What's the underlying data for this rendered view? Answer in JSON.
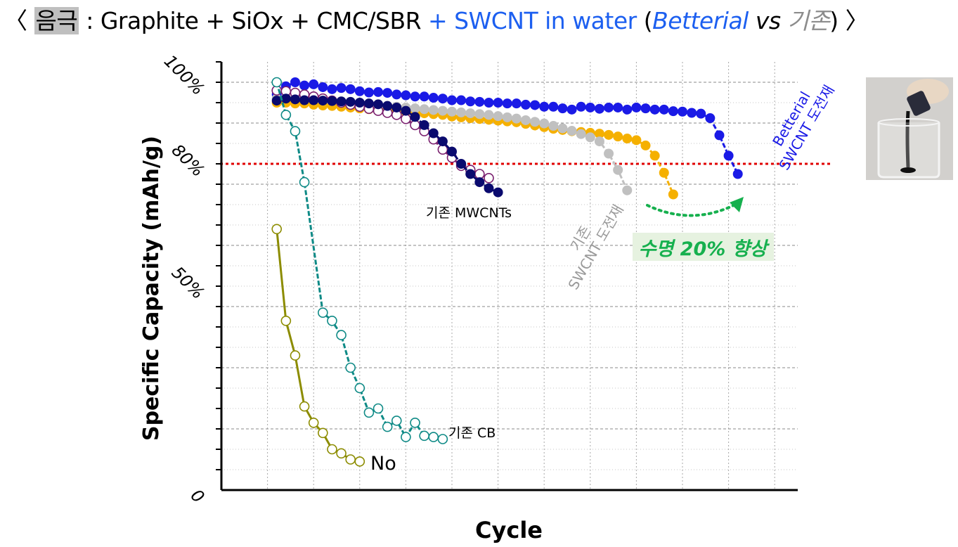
{
  "title": {
    "open": "〈 ",
    "highlight": "음극",
    "text1": " : Graphite + SiOx + CMC/SBR ",
    "blue_text": "+ SWCNT in water",
    "paren_open": " (",
    "brand": "Betterial",
    "vs": " vs ",
    "existing": "기존",
    "close": ") 〉"
  },
  "colors": {
    "betterial": "#1a1ae6",
    "existing_swcnt_gray": "#c0c0c0",
    "existing_swcnt_orange": "#f5b000",
    "mwcnt_navy": "#0a0a6e",
    "mwcnt_open": "#7a1f6e",
    "cb": "#0e8a86",
    "no": "#8c8c00",
    "threshold": "#e00000",
    "arrow": "#16b04e"
  },
  "photo": {
    "name": "SWCNT dispersion photo"
  },
  "chart_data": {
    "type": "line",
    "xlabel": "Cycle",
    "ylabel": "Specific Capacity (mAh/g)",
    "xlim": [
      0,
      12.5
    ],
    "ylim": [
      0,
      105
    ],
    "grid": true,
    "ytick_labels": [
      {
        "value": 100,
        "label": "100%"
      },
      {
        "value": 80,
        "label": "80%"
      },
      {
        "value": 50,
        "label": "50%"
      },
      {
        "value": 0,
        "label": "0"
      }
    ],
    "threshold": {
      "value": 80
    },
    "series": [
      {
        "key": "betterial",
        "style": "filled",
        "x": [
          1.2,
          1.4,
          1.6,
          1.8,
          2.0,
          2.2,
          2.4,
          2.6,
          2.8,
          3.0,
          3.2,
          3.4,
          3.6,
          3.8,
          4.0,
          4.2,
          4.4,
          4.6,
          4.8,
          5.0,
          5.2,
          5.4,
          5.6,
          5.8,
          6.0,
          6.2,
          6.4,
          6.6,
          6.8,
          7.0,
          7.2,
          7.4,
          7.6,
          7.8,
          8.0,
          8.2,
          8.4,
          8.6,
          8.8,
          9.0,
          9.2,
          9.4,
          9.6,
          9.8,
          10.0,
          10.2,
          10.4,
          10.6,
          10.8,
          11.0,
          11.2
        ],
        "y": [
          97,
          99,
          100,
          99.2,
          99.5,
          98.8,
          98.3,
          98.6,
          98.3,
          97.8,
          97.5,
          97.6,
          97.4,
          97.0,
          96.8,
          96.5,
          96.5,
          96.2,
          96.0,
          95.6,
          95.6,
          95.3,
          95.2,
          95.0,
          95.0,
          94.8,
          94.8,
          94.5,
          94.4,
          94.0,
          94.0,
          93.6,
          93.3,
          94.0,
          93.8,
          93.5,
          93.8,
          93.8,
          93.3,
          93.8,
          93.6,
          93.3,
          93.3,
          92.9,
          92.8,
          92.5,
          92.3,
          91.2,
          87.0,
          82.0,
          77.5
        ]
      },
      {
        "key": "existing_swcnt_orange",
        "style": "filled",
        "x": [
          1.2,
          1.4,
          1.6,
          1.8,
          2.0,
          2.2,
          2.4,
          2.6,
          2.8,
          3.0,
          3.2,
          3.4,
          3.6,
          3.8,
          4.0,
          4.2,
          4.4,
          4.6,
          4.8,
          5.0,
          5.2,
          5.4,
          5.6,
          5.8,
          6.0,
          6.2,
          6.4,
          6.6,
          6.8,
          7.0,
          7.2,
          7.4,
          7.6,
          7.8,
          8.0,
          8.2,
          8.4,
          8.6,
          8.8,
          9.0,
          9.2,
          9.4,
          9.6,
          9.8
        ],
        "y": [
          95,
          95,
          94.8,
          94.8,
          94.5,
          94.3,
          94.2,
          94,
          93.8,
          93.6,
          93.4,
          93.2,
          93.1,
          93,
          92.8,
          92.6,
          92.4,
          92.2,
          92,
          91.6,
          91.4,
          91.2,
          91,
          90.8,
          90.6,
          90.4,
          90.2,
          89.8,
          89.4,
          89,
          88.6,
          88.3,
          88,
          87.8,
          87.6,
          87.4,
          87.1,
          86.7,
          86.2,
          85.8,
          84.5,
          82.0,
          77.8,
          72.5
        ]
      },
      {
        "key": "existing_swcnt_gray",
        "style": "filled",
        "x": [
          1.2,
          1.4,
          1.6,
          1.8,
          2.0,
          2.2,
          2.4,
          2.6,
          2.8,
          3.0,
          3.2,
          3.4,
          3.6,
          3.8,
          4.0,
          4.2,
          4.4,
          4.6,
          4.8,
          5.0,
          5.2,
          5.4,
          5.6,
          5.8,
          6.0,
          6.2,
          6.4,
          6.6,
          6.8,
          7.0,
          7.2,
          7.4,
          7.6,
          7.8,
          8.0,
          8.2,
          8.4,
          8.6,
          8.8
        ],
        "y": [
          96,
          96.2,
          96.1,
          96,
          95.8,
          95.6,
          95.4,
          95.2,
          95,
          94.8,
          94.6,
          94.4,
          94.2,
          94,
          93.8,
          93.6,
          93.4,
          93.2,
          93,
          92.8,
          92.6,
          92.4,
          92.2,
          92,
          91.7,
          91.4,
          91.1,
          90.7,
          90.3,
          89.9,
          89.3,
          88.7,
          88.1,
          87.3,
          86.5,
          85.5,
          82.5,
          78.5,
          73.5
        ]
      },
      {
        "key": "mwcnt_open",
        "style": "open",
        "x": [
          1.2,
          1.4,
          1.6,
          1.8,
          2.0,
          2.2,
          2.4,
          2.6,
          2.8,
          3.0,
          3.2,
          3.4,
          3.6,
          3.8,
          4.0,
          4.2,
          4.4,
          4.6,
          4.8,
          5.0,
          5.2,
          5.4,
          5.6,
          5.8
        ],
        "y": [
          98,
          97.8,
          97.4,
          97,
          96.5,
          96,
          95.5,
          95,
          94.5,
          94,
          93.5,
          93,
          92.5,
          92,
          91,
          89.5,
          88,
          86,
          83.5,
          81.5,
          79.5,
          78.5,
          77.5,
          76.5
        ]
      },
      {
        "key": "mwcnt_navy",
        "style": "filled",
        "x": [
          1.2,
          1.4,
          1.6,
          1.8,
          2.0,
          2.2,
          2.4,
          2.6,
          2.8,
          3.0,
          3.2,
          3.4,
          3.6,
          3.8,
          4.0,
          4.2,
          4.4,
          4.6,
          4.8,
          5.0,
          5.2,
          5.4,
          5.6,
          5.8,
          6.0
        ],
        "y": [
          95.5,
          96,
          95.8,
          95.6,
          95.6,
          95.5,
          95.4,
          95.3,
          95.2,
          95,
          94.8,
          94.6,
          94.2,
          93.8,
          93,
          91.5,
          89.5,
          87.5,
          85.5,
          83,
          80,
          77.5,
          75.5,
          74,
          73
        ]
      },
      {
        "key": "cb",
        "style": "open",
        "x": [
          1.2,
          1.4,
          1.6,
          1.8,
          2.2,
          2.4,
          2.6,
          2.8,
          3.0,
          3.2,
          3.4,
          3.6,
          3.8,
          4.0,
          4.2,
          4.4,
          4.6,
          4.8
        ],
        "y": [
          100,
          92,
          88,
          75.5,
          43.5,
          41.5,
          38,
          30,
          25,
          19,
          20,
          15.5,
          17,
          13,
          16.5,
          13.3,
          13,
          12.5
        ]
      },
      {
        "key": "no",
        "style": "open",
        "x": [
          1.2,
          1.4,
          1.6,
          1.8,
          2.0,
          2.2,
          2.4,
          2.6,
          2.8,
          3.0
        ],
        "y": [
          64,
          41.5,
          33,
          20.5,
          16.5,
          14,
          10,
          9,
          7.5,
          7
        ]
      }
    ],
    "annotations": {
      "betterial_label": "Betterial\nSWCNT 도전재",
      "existing_swcnt_label": "기존\nSWCNT 도전재",
      "mwcnt_label": "기존 MWCNTs",
      "cb_label": "기존 CB",
      "no_label": "No",
      "improvement": "수명 20% 향상"
    }
  }
}
